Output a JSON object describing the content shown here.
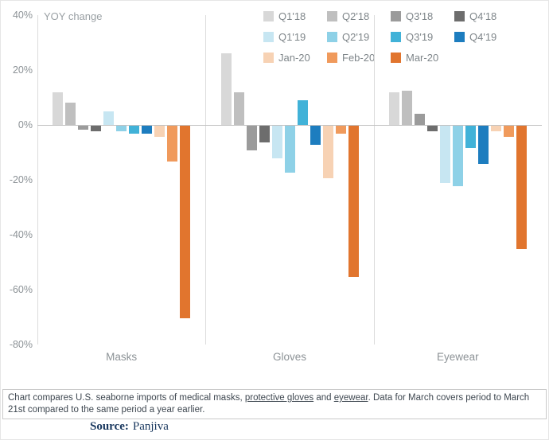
{
  "chart_data": {
    "type": "bar",
    "title": "",
    "ylabel": "YOY change",
    "categories": [
      "Masks",
      "Gloves",
      "Eyewear"
    ],
    "series": [
      {
        "name": "Q1'18",
        "color": "#d8d8d8",
        "values": [
          12,
          26,
          12
        ]
      },
      {
        "name": "Q2'18",
        "color": "#bfbfbf",
        "values": [
          8,
          12,
          12.5
        ]
      },
      {
        "name": "Q3'18",
        "color": "#9b9b9b",
        "values": [
          -1.5,
          -9,
          4
        ]
      },
      {
        "name": "Q4'18",
        "color": "#6d6d6d",
        "values": [
          -2,
          -6,
          -2
        ]
      },
      {
        "name": "Q1'19",
        "color": "#c7e6f2",
        "values": [
          5,
          -12,
          -21
        ]
      },
      {
        "name": "Q2'19",
        "color": "#8ed1e7",
        "values": [
          -2,
          -17,
          -22
        ]
      },
      {
        "name": "Q3'19",
        "color": "#41b2d8",
        "values": [
          -3,
          9,
          -8
        ]
      },
      {
        "name": "Q4'19",
        "color": "#1d7dbf",
        "values": [
          -3,
          -7,
          -14
        ]
      },
      {
        "name": "Jan-20",
        "color": "#f7d2b4",
        "values": [
          -4,
          -19,
          -2
        ]
      },
      {
        "name": "Feb-20",
        "color": "#f09a5c",
        "values": [
          -13,
          -3,
          -4
        ]
      },
      {
        "name": "Mar-20",
        "color": "#e1752e",
        "values": [
          -70,
          -55,
          -45
        ]
      }
    ],
    "ylim": [
      -80,
      40
    ],
    "yticks": [
      40,
      20,
      0,
      -20,
      -40,
      -60,
      -80
    ],
    "ytick_labels": [
      "40%",
      "20%",
      "0%",
      "-20%",
      "-40%",
      "-60%",
      "-80%"
    ],
    "grid": false,
    "legend_position": "top-right"
  },
  "footer": {
    "note_segments": [
      {
        "text": "Chart compares U.S. seaborne imports of medical masks, ",
        "link": false
      },
      {
        "text": "protective gloves",
        "link": true
      },
      {
        "text": " and ",
        "link": false
      },
      {
        "text": "eyewear",
        "link": true
      },
      {
        "text": ". Data for March covers period to March 21st compared to the same period a year earlier.",
        "link": false
      }
    ],
    "source_label": "Source:",
    "source_value": "Panjiva"
  }
}
